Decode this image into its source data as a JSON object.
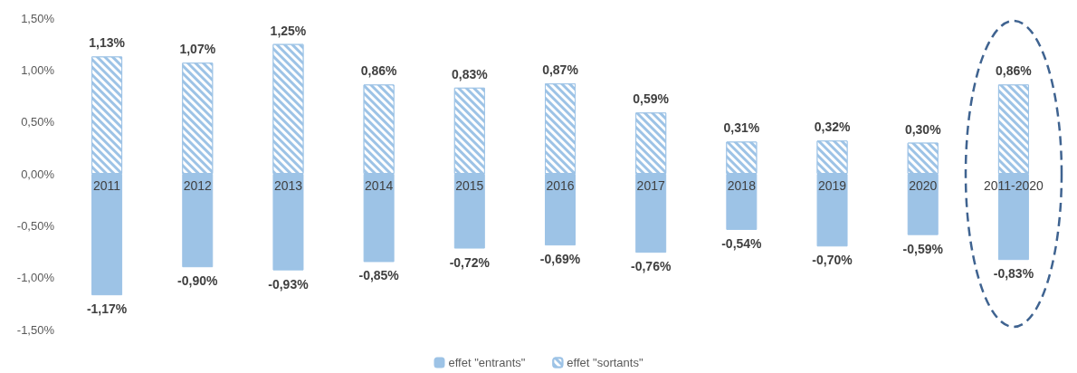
{
  "chart_data": {
    "type": "bar",
    "stacked": true,
    "categories": [
      "2011",
      "2012",
      "2013",
      "2014",
      "2015",
      "2016",
      "2017",
      "2018",
      "2019",
      "2020",
      "2011-2020"
    ],
    "series": [
      {
        "name": "effet \"entrants\"",
        "color": "#9dc3e6",
        "values": [
          -1.17,
          -0.9,
          -0.93,
          -0.85,
          -0.72,
          -0.69,
          -0.76,
          -0.54,
          -0.7,
          -0.59,
          -0.83
        ],
        "value_labels": [
          "-1,17%",
          "-0,90%",
          "-0,93%",
          "-0,85%",
          "-0,72%",
          "-0,69%",
          "-0,76%",
          "-0,54%",
          "-0,70%",
          "-0,59%",
          "-0,83%"
        ]
      },
      {
        "name": "effet \"sortants\"",
        "color": "#9dc3e6",
        "values": [
          1.13,
          1.07,
          1.25,
          0.86,
          0.83,
          0.87,
          0.59,
          0.31,
          0.32,
          0.3,
          0.86
        ],
        "value_labels": [
          "1,13%",
          "1,07%",
          "1,25%",
          "0,86%",
          "0,83%",
          "0,87%",
          "0,59%",
          "0,31%",
          "0,32%",
          "0,30%",
          "0,86%"
        ]
      }
    ],
    "ylim": [
      -1.5,
      1.5
    ],
    "yticks": [
      {
        "value": -1.5,
        "label": "-1,50%"
      },
      {
        "value": -1,
        "label": "-1,00%"
      },
      {
        "value": -0.5,
        "label": "-0,50%"
      },
      {
        "value": 0,
        "label": "0,00%"
      },
      {
        "value": 0.5,
        "label": "0,50%"
      },
      {
        "value": 1,
        "label": "1,00%"
      },
      {
        "value": 1.5,
        "label": "1,50%"
      }
    ],
    "grid": false,
    "legend": "bottom"
  }
}
